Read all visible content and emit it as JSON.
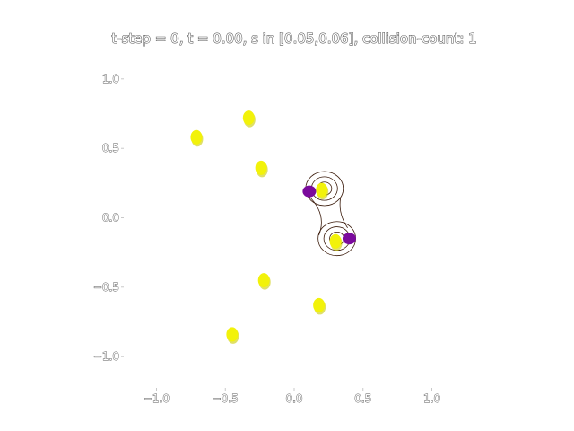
{
  "chart_data": {
    "type": "scatter",
    "title": "t-step = 0, t = 0.00, s in [0.05,0.06], collision-count: 1",
    "xlim": [
      -1.25,
      1.25
    ],
    "ylim": [
      -1.18,
      1.18
    ],
    "x_ticks": [
      -1.0,
      -0.5,
      0.0,
      0.5,
      1.0
    ],
    "x_tick_labels": [
      "−1.0",
      "−0.5",
      "0.0",
      "0.5",
      "1.0"
    ],
    "y_ticks": [
      1.0,
      0.5,
      0.0,
      -0.5,
      -1.0
    ],
    "y_tick_labels": [
      "1.0",
      "0.5",
      "0.0",
      "−0.5",
      "−1.0"
    ],
    "grid": false,
    "axis_lines": false,
    "colors": {
      "particle": "#f2f20a",
      "particle_edge": "#cccc00",
      "colliding": "#7a0a9c",
      "contour": "#3a1a0a"
    },
    "series": [
      {
        "values": [
          {
            "x": -0.71,
            "y": 0.58
          },
          {
            "x": -0.33,
            "y": 0.72
          },
          {
            "x": -0.24,
            "y": 0.36
          },
          {
            "x": 0.2,
            "y": 0.2
          },
          {
            "x": 0.3,
            "y": -0.17
          },
          {
            "x": -0.22,
            "y": -0.45
          },
          {
            "x": 0.18,
            "y": -0.63
          },
          {
            "x": -0.45,
            "y": -0.84
          }
        ]
      },
      {
        "values": [
          {
            "x": 0.11,
            "y": 0.19
          },
          {
            "x": 0.4,
            "y": -0.15
          }
        ]
      }
    ],
    "contours": [
      {
        "cx": 0.22,
        "cy": 0.21,
        "radii": [
          0.05,
          0.09,
          0.13
        ]
      },
      {
        "cx": 0.31,
        "cy": -0.15,
        "radii": [
          0.05,
          0.09,
          0.13
        ]
      }
    ]
  }
}
